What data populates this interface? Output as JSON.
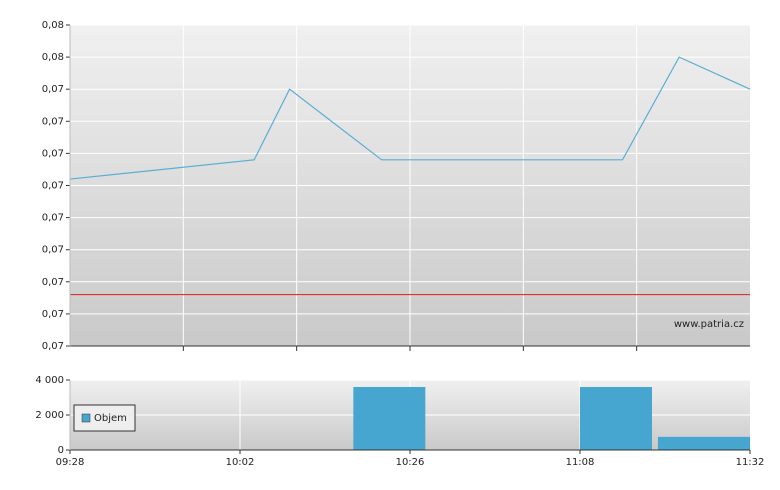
{
  "chart_data": [
    {
      "type": "line",
      "x": [
        "09:28",
        "10:04",
        "10:09",
        "10:22",
        "11:14",
        "11:22",
        "11:32"
      ],
      "series": [
        {
          "color": "#5aaed4",
          "values": [
            0.0731,
            0.0734,
            0.0745,
            0.0734,
            0.0734,
            0.075,
            0.0745
          ]
        }
      ],
      "ylim": [
        0.0705,
        0.0755
      ],
      "yticks": [
        {
          "value": 0.0705,
          "label": "0,07"
        },
        {
          "value": 0.071,
          "label": "0,07"
        },
        {
          "value": 0.0715,
          "label": "0,07"
        },
        {
          "value": 0.072,
          "label": "0,07"
        },
        {
          "value": 0.0725,
          "label": "0,07"
        },
        {
          "value": 0.073,
          "label": "0,07"
        },
        {
          "value": 0.0735,
          "label": "0,07"
        },
        {
          "value": 0.074,
          "label": "0,07"
        },
        {
          "value": 0.0745,
          "label": "0,07"
        },
        {
          "value": 0.075,
          "label": "0,08"
        },
        {
          "value": 0.0755,
          "label": "0,08"
        }
      ],
      "reference_line": {
        "value": 0.0713,
        "color": "#d62020"
      },
      "grid": true,
      "annotation": "www.patria.cz"
    },
    {
      "type": "bar",
      "x": [
        "10:18",
        "11:08",
        "11:19"
      ],
      "series": [
        {
          "name": "Objem",
          "color": "#47a6cf",
          "values": [
            3600,
            3600,
            750
          ]
        }
      ],
      "xticks": [
        "09:28",
        "10:02",
        "10:26",
        "11:08",
        "11:32"
      ],
      "ylim": [
        0,
        4000
      ],
      "yticks": [
        0,
        {
          "value": 2000,
          "label": "2 000"
        },
        {
          "value": 4000,
          "label": "4 000"
        }
      ],
      "grid": true,
      "legend": "left"
    }
  ]
}
